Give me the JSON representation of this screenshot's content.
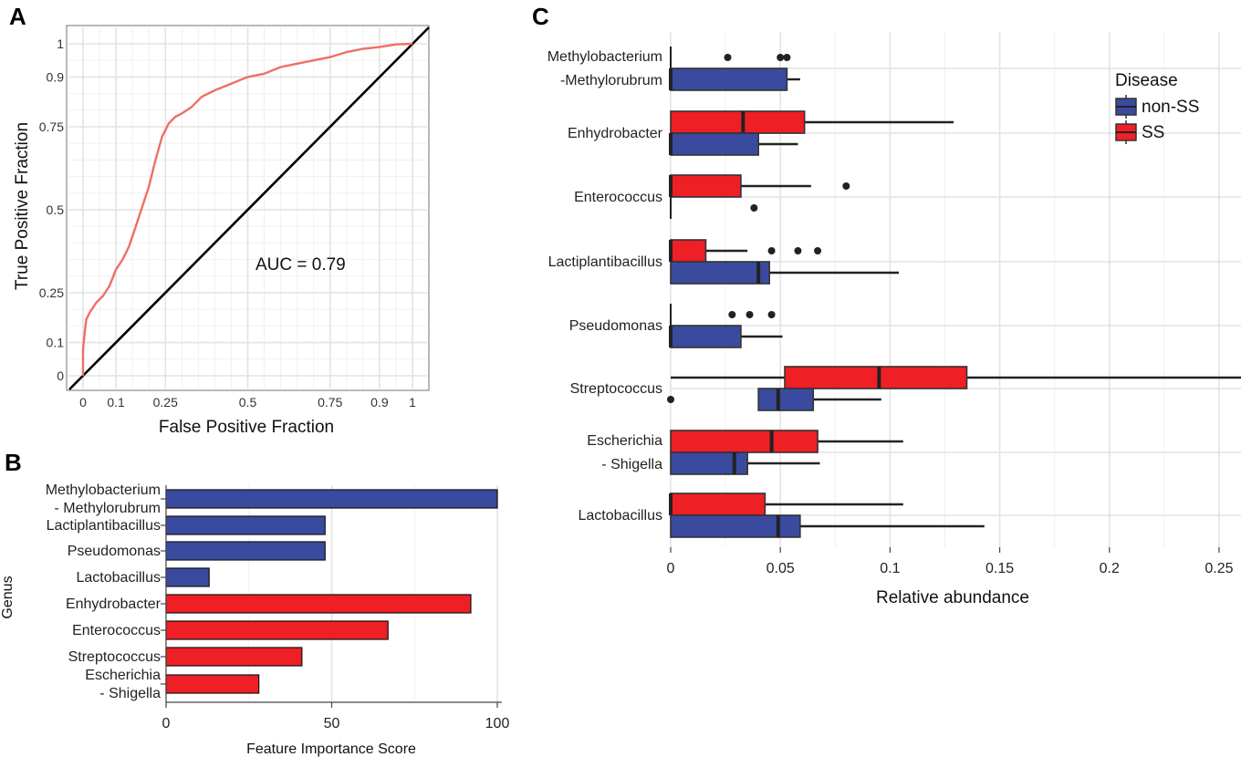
{
  "chart_data": [
    {
      "panel": "A",
      "type": "line",
      "title": "",
      "xlabel": "False Positive Fraction",
      "ylabel": "True Positive Fraction",
      "xlim": [
        0,
        1
      ],
      "ylim": [
        0,
        1
      ],
      "x_ticks": [
        "0",
        "0.1",
        "0.25",
        "0.5",
        "0.75",
        "0.9",
        "1"
      ],
      "y_ticks": [
        "0",
        "0.1",
        "0.25",
        "0.5",
        "0.75",
        "0.9",
        "1"
      ],
      "annotation": "AUC = 0.79",
      "series": [
        {
          "name": "ROC curve",
          "color": "#ef6f63",
          "points": [
            [
              0,
              0
            ],
            [
              0,
              0.08
            ],
            [
              0.005,
              0.13
            ],
            [
              0.01,
              0.17
            ],
            [
              0.02,
              0.19
            ],
            [
              0.04,
              0.22
            ],
            [
              0.06,
              0.24
            ],
            [
              0.08,
              0.27
            ],
            [
              0.1,
              0.32
            ],
            [
              0.12,
              0.35
            ],
            [
              0.14,
              0.39
            ],
            [
              0.16,
              0.45
            ],
            [
              0.18,
              0.51
            ],
            [
              0.2,
              0.57
            ],
            [
              0.22,
              0.65
            ],
            [
              0.24,
              0.72
            ],
            [
              0.26,
              0.76
            ],
            [
              0.28,
              0.78
            ],
            [
              0.3,
              0.79
            ],
            [
              0.33,
              0.81
            ],
            [
              0.36,
              0.84
            ],
            [
              0.4,
              0.86
            ],
            [
              0.45,
              0.88
            ],
            [
              0.5,
              0.9
            ],
            [
              0.55,
              0.91
            ],
            [
              0.6,
              0.93
            ],
            [
              0.65,
              0.94
            ],
            [
              0.7,
              0.95
            ],
            [
              0.75,
              0.96
            ],
            [
              0.8,
              0.975
            ],
            [
              0.85,
              0.985
            ],
            [
              0.9,
              0.99
            ],
            [
              0.95,
              0.998
            ],
            [
              1,
              1
            ]
          ]
        },
        {
          "name": "chance",
          "color": "#000000",
          "points": [
            [
              0,
              0
            ],
            [
              1,
              1
            ]
          ]
        }
      ]
    },
    {
      "panel": "B",
      "type": "bar",
      "orientation": "horizontal",
      "title": "",
      "xlabel": "Feature Importance Score",
      "ylabel": "Genus",
      "xlim": [
        0,
        100
      ],
      "x_ticks": [
        "0",
        "50",
        "100"
      ],
      "categories": [
        [
          "Methylobacterium",
          "- Methylorubrum"
        ],
        [
          "Lactiplantibacillus"
        ],
        [
          "Pseudomonas"
        ],
        [
          "Lactobacillus"
        ],
        [
          "Enhydrobacter"
        ],
        [
          "Enterococcus"
        ],
        [
          "Streptococcus"
        ],
        [
          "Escherichia",
          "- Shigella"
        ]
      ],
      "values": [
        100,
        48,
        48,
        13,
        92,
        67,
        41,
        28
      ],
      "bar_colors": [
        "#3a4a9f",
        "#3a4a9f",
        "#3a4a9f",
        "#3a4a9f",
        "#ee1f25",
        "#ee1f25",
        "#ee1f25",
        "#ee1f25"
      ]
    },
    {
      "panel": "C",
      "type": "boxplot",
      "orientation": "horizontal",
      "title": "",
      "xlabel": "Relative abundance",
      "ylabel": "",
      "xlim": [
        0,
        0.26
      ],
      "x_ticks": [
        "0",
        "0.05",
        "0.1",
        "0.15",
        "0.2",
        "0.25"
      ],
      "legend": {
        "title": "Disease",
        "position": "top-right",
        "entries": [
          {
            "name": "non-SS",
            "color": "#3a4a9f"
          },
          {
            "name": "SS",
            "color": "#ee1f25"
          }
        ]
      },
      "categories": [
        [
          "Methylobacterium",
          "-Methylorubrum"
        ],
        [
          "Enhydrobacter"
        ],
        [
          "Enterococcus"
        ],
        [
          "Lactiplantibacillus"
        ],
        [
          "Pseudomonas"
        ],
        [
          "Streptococcus"
        ],
        [
          "Escherichia",
          "- Shigella"
        ],
        [
          "Lactobacillus"
        ]
      ],
      "series": [
        {
          "name": "SS",
          "color": "#ee1f25",
          "boxes": [
            {
              "min": 0,
              "q1": 0,
              "median": 0,
              "q3": 0,
              "max": 0,
              "outliers": [
                0.026,
                0.05,
                0.053
              ]
            },
            {
              "min": 0,
              "q1": 0,
              "median": 0.033,
              "q3": 0.061,
              "max": 0.129,
              "outliers": []
            },
            {
              "min": 0,
              "q1": 0,
              "median": 0,
              "q3": 0.032,
              "max": 0.064,
              "outliers": [
                0.08
              ]
            },
            {
              "min": 0,
              "q1": 0,
              "median": 0,
              "q3": 0.016,
              "max": 0.035,
              "outliers": [
                0.046,
                0.058,
                0.067
              ]
            },
            {
              "min": 0,
              "q1": 0,
              "median": 0,
              "q3": 0,
              "max": 0,
              "outliers": [
                0.028,
                0.036,
                0.046
              ]
            },
            {
              "min": 0,
              "q1": 0.052,
              "median": 0.095,
              "q3": 0.135,
              "max": 0.26,
              "outliers": []
            },
            {
              "min": 0,
              "q1": 0,
              "median": 0.046,
              "q3": 0.067,
              "max": 0.106,
              "outliers": []
            },
            {
              "min": 0,
              "q1": 0,
              "median": 0,
              "q3": 0.043,
              "max": 0.106,
              "outliers": []
            }
          ]
        },
        {
          "name": "non-SS",
          "color": "#3a4a9f",
          "boxes": [
            {
              "min": 0,
              "q1": 0,
              "median": 0,
              "q3": 0.053,
              "max": 0.059,
              "outliers": []
            },
            {
              "min": 0,
              "q1": 0,
              "median": 0,
              "q3": 0.04,
              "max": 0.058,
              "outliers": []
            },
            {
              "min": 0,
              "q1": 0,
              "median": 0,
              "q3": 0,
              "max": 0,
              "outliers": [
                0.038
              ]
            },
            {
              "min": 0,
              "q1": 0,
              "median": 0.04,
              "q3": 0.045,
              "max": 0.104,
              "outliers": []
            },
            {
              "min": 0,
              "q1": 0,
              "median": 0,
              "q3": 0.032,
              "max": 0.051,
              "outliers": []
            },
            {
              "min": 0.04,
              "q1": 0.04,
              "median": 0.049,
              "q3": 0.065,
              "max": 0.096,
              "outliers": [
                0
              ]
            },
            {
              "min": 0,
              "q1": 0,
              "median": 0.029,
              "q3": 0.035,
              "max": 0.068,
              "outliers": []
            },
            {
              "min": 0,
              "q1": 0,
              "median": 0.049,
              "q3": 0.059,
              "max": 0.143,
              "outliers": []
            }
          ]
        }
      ]
    }
  ]
}
